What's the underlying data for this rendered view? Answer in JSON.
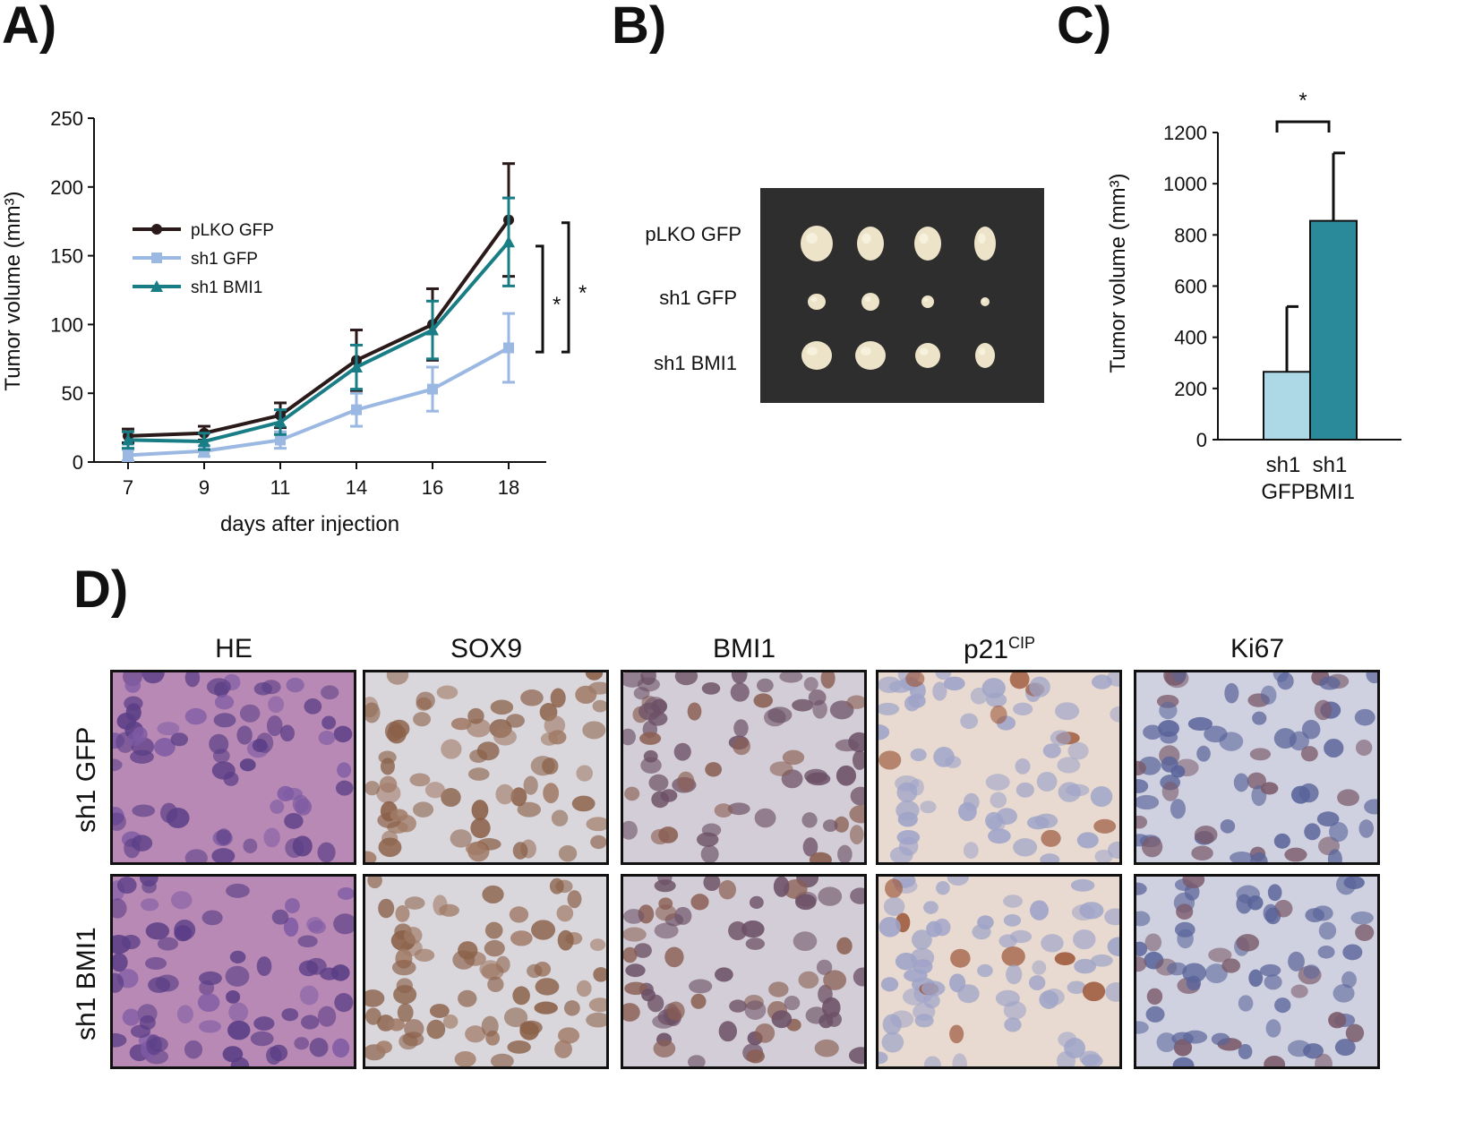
{
  "panels": {
    "a": {
      "label": "A)"
    },
    "b": {
      "label": "B)"
    },
    "c": {
      "label": "C)"
    },
    "d": {
      "label": "D)"
    }
  },
  "chart_data": [
    {
      "type": "line",
      "panel": "A",
      "title": "",
      "xlabel": "days after injection",
      "ylabel": "Tumor volume (mm³)",
      "x": [
        7,
        9,
        11,
        14,
        16,
        18
      ],
      "x_ticks": [
        "7",
        "9",
        "11",
        "14",
        "16",
        "18"
      ],
      "ylim": [
        0,
        250
      ],
      "y_ticks": [
        "0",
        "50",
        "100",
        "150",
        "200",
        "250"
      ],
      "grid": false,
      "legend_position": "top-left",
      "series": [
        {
          "name": "pLKO GFP",
          "color": "#2a1a1a",
          "marker": "circle",
          "values": [
            19,
            21,
            34,
            74,
            100,
            176
          ],
          "error": [
            5,
            5,
            9,
            22,
            26,
            41
          ]
        },
        {
          "name": "sh1 GFP",
          "color": "#9bb8e2",
          "marker": "square",
          "values": [
            5,
            8,
            16,
            38,
            53,
            83
          ],
          "error": [
            4,
            4,
            6,
            12,
            16,
            25
          ]
        },
        {
          "name": "sh1 BMI1",
          "color": "#197d86",
          "marker": "triangle",
          "values": [
            16,
            15,
            29,
            69,
            96,
            160
          ],
          "error": [
            6,
            6,
            9,
            16,
            21,
            32
          ]
        }
      ],
      "annotations": [
        {
          "text": "*",
          "between": [
            "sh1 BMI1",
            "sh1 GFP"
          ]
        },
        {
          "text": "*",
          "between": [
            "pLKO GFP",
            "sh1 GFP"
          ]
        }
      ]
    },
    {
      "type": "bar",
      "panel": "C",
      "title": "",
      "xlabel": "",
      "ylabel": "Tumor volume (mm³)",
      "categories": [
        "sh1\nGFP",
        "sh1\nBMI1"
      ],
      "category_lines": [
        [
          "sh1",
          "GFP"
        ],
        [
          "sh1",
          "BMI1"
        ]
      ],
      "values": [
        265,
        855
      ],
      "error": [
        255,
        265
      ],
      "colors": [
        "#add8e6",
        "#2a8a9a"
      ],
      "ylim": [
        0,
        1200
      ],
      "y_ticks": [
        "0",
        "200",
        "400",
        "600",
        "800",
        "1000",
        "1200"
      ],
      "grid": false,
      "annotations": [
        {
          "text": "*",
          "between": [
            "sh1 GFP",
            "sh1 BMI1"
          ]
        }
      ]
    }
  ],
  "photo_b": {
    "row_labels": [
      "pLKO GFP",
      "sh1 GFP",
      "sh1 BMI1"
    ],
    "background": "#2e2e2e",
    "tumor_color": "#ece3c8"
  },
  "histology": {
    "columns": [
      "HE",
      "SOX9",
      "BMI1",
      "p21",
      "Ki67"
    ],
    "p21_superscript": "CIP",
    "rows": [
      "sh1 GFP",
      "sh1 BMI1"
    ],
    "stain_colors": {
      "HE": {
        "bg": "#b889b4",
        "nuclei": "#5a3e86"
      },
      "SOX9": {
        "bg": "#d9d6dc",
        "nuclei": "#8a6048"
      },
      "BMI1": {
        "bg": "#d2cdd6",
        "nuclei": "#6c5066"
      },
      "p21": {
        "bg": "#e8dad0",
        "nuclei": "#9ea3c8"
      },
      "Ki67": {
        "bg": "#cfd1e0",
        "nuclei": "#5a649a"
      }
    }
  }
}
